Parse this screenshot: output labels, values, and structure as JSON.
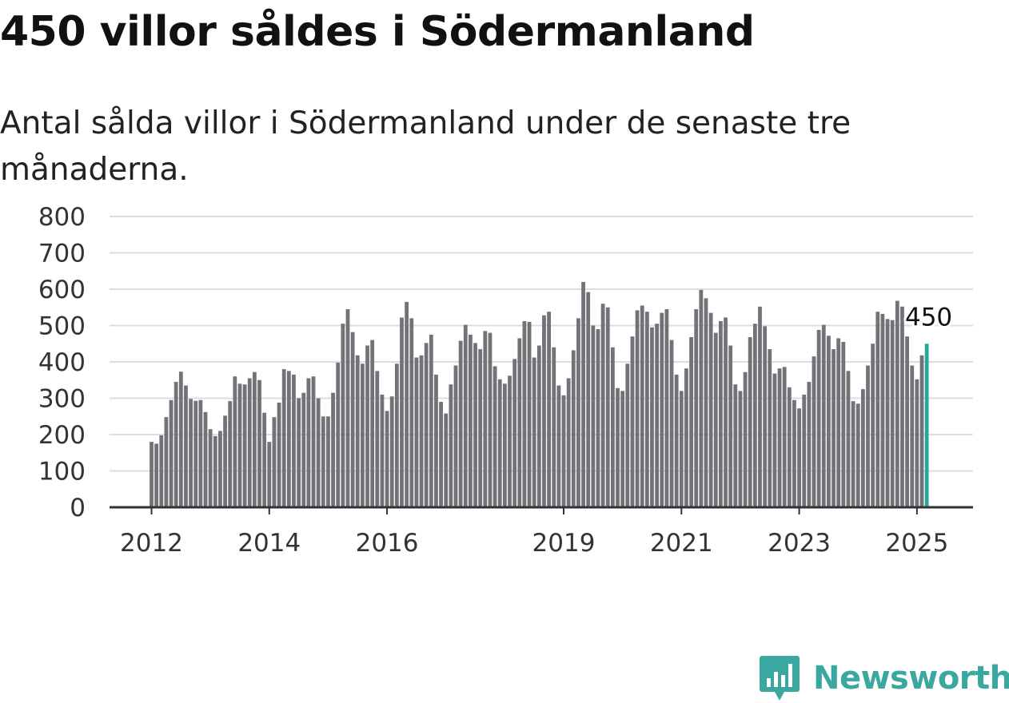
{
  "title": "450 villor såldes i Södermanland",
  "subtitle": "Antal sålda villor i Södermanland under de senaste tre månaderna.",
  "brand": {
    "name": "Newsworthy",
    "icon": "bar-chart-badge-icon",
    "color": "#3aa7a0"
  },
  "chart_data": {
    "type": "bar",
    "title": "450 villor såldes i Södermanland",
    "subtitle": "Antal sålda villor i Södermanland under de senaste tre månaderna.",
    "xlabel": "",
    "ylabel": "",
    "ylim": [
      0,
      800
    ],
    "yticks": [
      0,
      100,
      200,
      300,
      400,
      500,
      600,
      700,
      800
    ],
    "ytick_labels": [
      "0",
      "100",
      "200",
      "300",
      "400",
      "500",
      "600",
      "700",
      "800"
    ],
    "grid": true,
    "x_start": "2012-01",
    "x_end": "2025-03",
    "xticks": [
      "2012-01",
      "2014-01",
      "2016-01",
      "2019-01",
      "2021-01",
      "2023-01",
      "2025-01"
    ],
    "xtick_labels": [
      "2012",
      "2014",
      "2016",
      "2019",
      "2021",
      "2023",
      "2025"
    ],
    "colors": {
      "bar": "#737278",
      "highlight": "#2aa598",
      "grid": "#dddddd",
      "axis": "#333333"
    },
    "highlight_label": "450",
    "series": [
      {
        "values": [
          180,
          175,
          198,
          248,
          295,
          345,
          373,
          335,
          298,
          293,
          295,
          262,
          215,
          196,
          210,
          252,
          292,
          360,
          340,
          338,
          355,
          372,
          350,
          260,
          180,
          248,
          288,
          380,
          375,
          365,
          300,
          315,
          355,
          360,
          300,
          250,
          250,
          315,
          398,
          505,
          545,
          482,
          418,
          395,
          445,
          460,
          375,
          310,
          265,
          305,
          395,
          522,
          565,
          520,
          412,
          418,
          452,
          475,
          365,
          290,
          258,
          338,
          390,
          458,
          502,
          475,
          452,
          435,
          485,
          480,
          388,
          352,
          340,
          362,
          408,
          465,
          512,
          510,
          412,
          445,
          528,
          538,
          440,
          335,
          308,
          355,
          432,
          520,
          620,
          592,
          500,
          490,
          560,
          550,
          440,
          328,
          320,
          395,
          470,
          542,
          555,
          538,
          495,
          505,
          535,
          545,
          460,
          365,
          320,
          382,
          468,
          545,
          598,
          575,
          535,
          480,
          512,
          522,
          445,
          338,
          320,
          372,
          468,
          505,
          552,
          498,
          435,
          368,
          382,
          386,
          330,
          295,
          272,
          310,
          345,
          415,
          488,
          502,
          472,
          435,
          465,
          455,
          375,
          292,
          285,
          325,
          390,
          450,
          538,
          532,
          518,
          515,
          568,
          552,
          470,
          390,
          352,
          418,
          450
        ]
      }
    ]
  }
}
